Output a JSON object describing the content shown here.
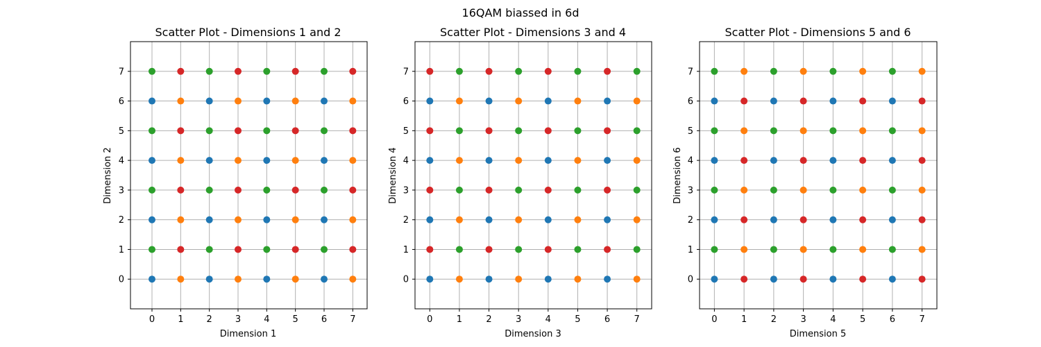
{
  "figure": {
    "suptitle": "16QAM biassed in 6d"
  },
  "colors": {
    "blue": "#1f77b4",
    "orange": "#ff7f0e",
    "green": "#2ca02c",
    "red": "#d62728"
  },
  "chart_data": [
    {
      "type": "scatter",
      "title": "Scatter Plot - Dimensions 1 and 2",
      "xlabel": "Dimension 1",
      "ylabel": "Dimension 2",
      "xlim": [
        -0.75,
        7.5
      ],
      "ylim": [
        -1,
        8
      ],
      "xticks": [
        0,
        1,
        2,
        3,
        4,
        5,
        6,
        7
      ],
      "yticks": [
        0,
        1,
        2,
        3,
        4,
        5,
        6,
        7
      ],
      "grid": true,
      "points": [
        {
          "x": 0,
          "y": 0,
          "color": "blue"
        },
        {
          "x": 1,
          "y": 0,
          "color": "orange"
        },
        {
          "x": 2,
          "y": 0,
          "color": "blue"
        },
        {
          "x": 3,
          "y": 0,
          "color": "orange"
        },
        {
          "x": 4,
          "y": 0,
          "color": "blue"
        },
        {
          "x": 5,
          "y": 0,
          "color": "orange"
        },
        {
          "x": 6,
          "y": 0,
          "color": "blue"
        },
        {
          "x": 7,
          "y": 0,
          "color": "orange"
        },
        {
          "x": 0,
          "y": 1,
          "color": "green"
        },
        {
          "x": 1,
          "y": 1,
          "color": "red"
        },
        {
          "x": 2,
          "y": 1,
          "color": "green"
        },
        {
          "x": 3,
          "y": 1,
          "color": "red"
        },
        {
          "x": 4,
          "y": 1,
          "color": "green"
        },
        {
          "x": 5,
          "y": 1,
          "color": "red"
        },
        {
          "x": 6,
          "y": 1,
          "color": "green"
        },
        {
          "x": 7,
          "y": 1,
          "color": "red"
        },
        {
          "x": 0,
          "y": 2,
          "color": "blue"
        },
        {
          "x": 1,
          "y": 2,
          "color": "orange"
        },
        {
          "x": 2,
          "y": 2,
          "color": "blue"
        },
        {
          "x": 3,
          "y": 2,
          "color": "orange"
        },
        {
          "x": 4,
          "y": 2,
          "color": "blue"
        },
        {
          "x": 5,
          "y": 2,
          "color": "orange"
        },
        {
          "x": 6,
          "y": 2,
          "color": "blue"
        },
        {
          "x": 7,
          "y": 2,
          "color": "orange"
        },
        {
          "x": 0,
          "y": 3,
          "color": "green"
        },
        {
          "x": 1,
          "y": 3,
          "color": "red"
        },
        {
          "x": 2,
          "y": 3,
          "color": "green"
        },
        {
          "x": 3,
          "y": 3,
          "color": "red"
        },
        {
          "x": 4,
          "y": 3,
          "color": "green"
        },
        {
          "x": 5,
          "y": 3,
          "color": "red"
        },
        {
          "x": 6,
          "y": 3,
          "color": "green"
        },
        {
          "x": 7,
          "y": 3,
          "color": "red"
        },
        {
          "x": 0,
          "y": 4,
          "color": "blue"
        },
        {
          "x": 1,
          "y": 4,
          "color": "orange"
        },
        {
          "x": 2,
          "y": 4,
          "color": "blue"
        },
        {
          "x": 3,
          "y": 4,
          "color": "orange"
        },
        {
          "x": 4,
          "y": 4,
          "color": "blue"
        },
        {
          "x": 5,
          "y": 4,
          "color": "orange"
        },
        {
          "x": 6,
          "y": 4,
          "color": "blue"
        },
        {
          "x": 7,
          "y": 4,
          "color": "orange"
        },
        {
          "x": 0,
          "y": 5,
          "color": "green"
        },
        {
          "x": 1,
          "y": 5,
          "color": "red"
        },
        {
          "x": 2,
          "y": 5,
          "color": "green"
        },
        {
          "x": 3,
          "y": 5,
          "color": "red"
        },
        {
          "x": 4,
          "y": 5,
          "color": "green"
        },
        {
          "x": 5,
          "y": 5,
          "color": "red"
        },
        {
          "x": 6,
          "y": 5,
          "color": "green"
        },
        {
          "x": 7,
          "y": 5,
          "color": "red"
        },
        {
          "x": 0,
          "y": 6,
          "color": "blue"
        },
        {
          "x": 1,
          "y": 6,
          "color": "orange"
        },
        {
          "x": 2,
          "y": 6,
          "color": "blue"
        },
        {
          "x": 3,
          "y": 6,
          "color": "orange"
        },
        {
          "x": 4,
          "y": 6,
          "color": "blue"
        },
        {
          "x": 5,
          "y": 6,
          "color": "orange"
        },
        {
          "x": 6,
          "y": 6,
          "color": "blue"
        },
        {
          "x": 7,
          "y": 6,
          "color": "orange"
        },
        {
          "x": 0,
          "y": 7,
          "color": "green"
        },
        {
          "x": 1,
          "y": 7,
          "color": "red"
        },
        {
          "x": 2,
          "y": 7,
          "color": "green"
        },
        {
          "x": 3,
          "y": 7,
          "color": "red"
        },
        {
          "x": 4,
          "y": 7,
          "color": "green"
        },
        {
          "x": 5,
          "y": 7,
          "color": "red"
        },
        {
          "x": 6,
          "y": 7,
          "color": "green"
        },
        {
          "x": 7,
          "y": 7,
          "color": "red"
        }
      ]
    },
    {
      "type": "scatter",
      "title": "Scatter Plot - Dimensions 3 and 4",
      "xlabel": "Dimension 3",
      "ylabel": "Dimension 4",
      "xlim": [
        -0.5,
        7.5
      ],
      "ylim": [
        -1,
        8
      ],
      "xticks": [
        0,
        1,
        2,
        3,
        4,
        5,
        6,
        7
      ],
      "yticks": [
        0,
        1,
        2,
        3,
        4,
        5,
        6,
        7
      ],
      "grid": true,
      "points": [
        {
          "x": 0,
          "y": 0,
          "color": "blue"
        },
        {
          "x": 1,
          "y": 0,
          "color": "orange"
        },
        {
          "x": 2,
          "y": 0,
          "color": "blue"
        },
        {
          "x": 3,
          "y": 0,
          "color": "orange"
        },
        {
          "x": 4,
          "y": 0,
          "color": "blue"
        },
        {
          "x": 5,
          "y": 0,
          "color": "orange"
        },
        {
          "x": 6,
          "y": 0,
          "color": "blue"
        },
        {
          "x": 7,
          "y": 0,
          "color": "orange"
        },
        {
          "x": 0,
          "y": 1,
          "color": "red"
        },
        {
          "x": 1,
          "y": 1,
          "color": "green"
        },
        {
          "x": 2,
          "y": 1,
          "color": "red"
        },
        {
          "x": 3,
          "y": 1,
          "color": "green"
        },
        {
          "x": 4,
          "y": 1,
          "color": "red"
        },
        {
          "x": 5,
          "y": 1,
          "color": "green"
        },
        {
          "x": 6,
          "y": 1,
          "color": "red"
        },
        {
          "x": 7,
          "y": 1,
          "color": "green"
        },
        {
          "x": 0,
          "y": 2,
          "color": "blue"
        },
        {
          "x": 1,
          "y": 2,
          "color": "orange"
        },
        {
          "x": 2,
          "y": 2,
          "color": "blue"
        },
        {
          "x": 3,
          "y": 2,
          "color": "orange"
        },
        {
          "x": 4,
          "y": 2,
          "color": "blue"
        },
        {
          "x": 5,
          "y": 2,
          "color": "orange"
        },
        {
          "x": 6,
          "y": 2,
          "color": "blue"
        },
        {
          "x": 7,
          "y": 2,
          "color": "orange"
        },
        {
          "x": 0,
          "y": 3,
          "color": "red"
        },
        {
          "x": 1,
          "y": 3,
          "color": "green"
        },
        {
          "x": 2,
          "y": 3,
          "color": "red"
        },
        {
          "x": 3,
          "y": 3,
          "color": "green"
        },
        {
          "x": 4,
          "y": 3,
          "color": "red"
        },
        {
          "x": 5,
          "y": 3,
          "color": "green"
        },
        {
          "x": 6,
          "y": 3,
          "color": "red"
        },
        {
          "x": 7,
          "y": 3,
          "color": "green"
        },
        {
          "x": 0,
          "y": 4,
          "color": "blue"
        },
        {
          "x": 1,
          "y": 4,
          "color": "orange"
        },
        {
          "x": 2,
          "y": 4,
          "color": "blue"
        },
        {
          "x": 3,
          "y": 4,
          "color": "orange"
        },
        {
          "x": 4,
          "y": 4,
          "color": "blue"
        },
        {
          "x": 5,
          "y": 4,
          "color": "orange"
        },
        {
          "x": 6,
          "y": 4,
          "color": "blue"
        },
        {
          "x": 7,
          "y": 4,
          "color": "orange"
        },
        {
          "x": 0,
          "y": 5,
          "color": "red"
        },
        {
          "x": 1,
          "y": 5,
          "color": "green"
        },
        {
          "x": 2,
          "y": 5,
          "color": "red"
        },
        {
          "x": 3,
          "y": 5,
          "color": "green"
        },
        {
          "x": 4,
          "y": 5,
          "color": "red"
        },
        {
          "x": 5,
          "y": 5,
          "color": "green"
        },
        {
          "x": 6,
          "y": 5,
          "color": "red"
        },
        {
          "x": 7,
          "y": 5,
          "color": "green"
        },
        {
          "x": 0,
          "y": 6,
          "color": "blue"
        },
        {
          "x": 1,
          "y": 6,
          "color": "orange"
        },
        {
          "x": 2,
          "y": 6,
          "color": "blue"
        },
        {
          "x": 3,
          "y": 6,
          "color": "orange"
        },
        {
          "x": 4,
          "y": 6,
          "color": "blue"
        },
        {
          "x": 5,
          "y": 6,
          "color": "orange"
        },
        {
          "x": 6,
          "y": 6,
          "color": "blue"
        },
        {
          "x": 7,
          "y": 6,
          "color": "orange"
        },
        {
          "x": 0,
          "y": 7,
          "color": "red"
        },
        {
          "x": 1,
          "y": 7,
          "color": "green"
        },
        {
          "x": 2,
          "y": 7,
          "color": "red"
        },
        {
          "x": 3,
          "y": 7,
          "color": "green"
        },
        {
          "x": 4,
          "y": 7,
          "color": "red"
        },
        {
          "x": 5,
          "y": 7,
          "color": "green"
        },
        {
          "x": 6,
          "y": 7,
          "color": "red"
        },
        {
          "x": 7,
          "y": 7,
          "color": "green"
        }
      ]
    },
    {
      "type": "scatter",
      "title": "Scatter Plot - Dimensions 5 and 6",
      "xlabel": "Dimension 5",
      "ylabel": "Dimension 6",
      "xlim": [
        -0.5,
        7.5
      ],
      "ylim": [
        -1,
        8
      ],
      "xticks": [
        0,
        1,
        2,
        3,
        4,
        5,
        6,
        7
      ],
      "yticks": [
        0,
        1,
        2,
        3,
        4,
        5,
        6,
        7
      ],
      "grid": true,
      "points": [
        {
          "x": 0,
          "y": 0,
          "color": "blue"
        },
        {
          "x": 1,
          "y": 0,
          "color": "red"
        },
        {
          "x": 2,
          "y": 0,
          "color": "blue"
        },
        {
          "x": 3,
          "y": 0,
          "color": "red"
        },
        {
          "x": 4,
          "y": 0,
          "color": "blue"
        },
        {
          "x": 5,
          "y": 0,
          "color": "red"
        },
        {
          "x": 6,
          "y": 0,
          "color": "blue"
        },
        {
          "x": 7,
          "y": 0,
          "color": "red"
        },
        {
          "x": 0,
          "y": 1,
          "color": "green"
        },
        {
          "x": 1,
          "y": 1,
          "color": "orange"
        },
        {
          "x": 2,
          "y": 1,
          "color": "green"
        },
        {
          "x": 3,
          "y": 1,
          "color": "orange"
        },
        {
          "x": 4,
          "y": 1,
          "color": "green"
        },
        {
          "x": 5,
          "y": 1,
          "color": "orange"
        },
        {
          "x": 6,
          "y": 1,
          "color": "green"
        },
        {
          "x": 7,
          "y": 1,
          "color": "orange"
        },
        {
          "x": 0,
          "y": 2,
          "color": "blue"
        },
        {
          "x": 1,
          "y": 2,
          "color": "red"
        },
        {
          "x": 2,
          "y": 2,
          "color": "blue"
        },
        {
          "x": 3,
          "y": 2,
          "color": "red"
        },
        {
          "x": 4,
          "y": 2,
          "color": "blue"
        },
        {
          "x": 5,
          "y": 2,
          "color": "red"
        },
        {
          "x": 6,
          "y": 2,
          "color": "blue"
        },
        {
          "x": 7,
          "y": 2,
          "color": "red"
        },
        {
          "x": 0,
          "y": 3,
          "color": "green"
        },
        {
          "x": 1,
          "y": 3,
          "color": "orange"
        },
        {
          "x": 2,
          "y": 3,
          "color": "green"
        },
        {
          "x": 3,
          "y": 3,
          "color": "orange"
        },
        {
          "x": 4,
          "y": 3,
          "color": "green"
        },
        {
          "x": 5,
          "y": 3,
          "color": "orange"
        },
        {
          "x": 6,
          "y": 3,
          "color": "green"
        },
        {
          "x": 7,
          "y": 3,
          "color": "orange"
        },
        {
          "x": 0,
          "y": 4,
          "color": "blue"
        },
        {
          "x": 1,
          "y": 4,
          "color": "red"
        },
        {
          "x": 2,
          "y": 4,
          "color": "blue"
        },
        {
          "x": 3,
          "y": 4,
          "color": "red"
        },
        {
          "x": 4,
          "y": 4,
          "color": "blue"
        },
        {
          "x": 5,
          "y": 4,
          "color": "red"
        },
        {
          "x": 6,
          "y": 4,
          "color": "blue"
        },
        {
          "x": 7,
          "y": 4,
          "color": "red"
        },
        {
          "x": 0,
          "y": 5,
          "color": "green"
        },
        {
          "x": 1,
          "y": 5,
          "color": "orange"
        },
        {
          "x": 2,
          "y": 5,
          "color": "green"
        },
        {
          "x": 3,
          "y": 5,
          "color": "orange"
        },
        {
          "x": 4,
          "y": 5,
          "color": "green"
        },
        {
          "x": 5,
          "y": 5,
          "color": "orange"
        },
        {
          "x": 6,
          "y": 5,
          "color": "green"
        },
        {
          "x": 7,
          "y": 5,
          "color": "orange"
        },
        {
          "x": 0,
          "y": 6,
          "color": "blue"
        },
        {
          "x": 1,
          "y": 6,
          "color": "red"
        },
        {
          "x": 2,
          "y": 6,
          "color": "blue"
        },
        {
          "x": 3,
          "y": 6,
          "color": "red"
        },
        {
          "x": 4,
          "y": 6,
          "color": "blue"
        },
        {
          "x": 5,
          "y": 6,
          "color": "red"
        },
        {
          "x": 6,
          "y": 6,
          "color": "blue"
        },
        {
          "x": 7,
          "y": 6,
          "color": "red"
        },
        {
          "x": 0,
          "y": 7,
          "color": "green"
        },
        {
          "x": 1,
          "y": 7,
          "color": "orange"
        },
        {
          "x": 2,
          "y": 7,
          "color": "green"
        },
        {
          "x": 3,
          "y": 7,
          "color": "orange"
        },
        {
          "x": 4,
          "y": 7,
          "color": "green"
        },
        {
          "x": 5,
          "y": 7,
          "color": "orange"
        },
        {
          "x": 6,
          "y": 7,
          "color": "green"
        },
        {
          "x": 7,
          "y": 7,
          "color": "orange"
        }
      ]
    }
  ]
}
